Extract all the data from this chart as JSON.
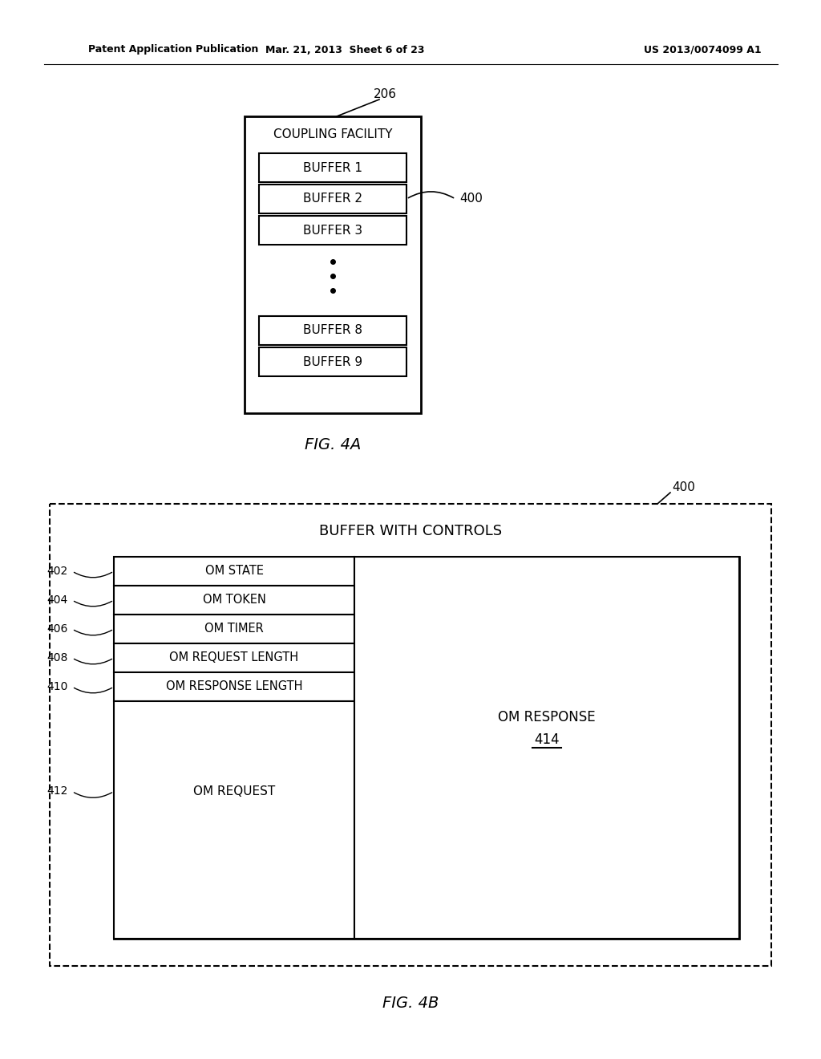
{
  "bg_color": "#ffffff",
  "header_left": "Patent Application Publication",
  "header_center": "Mar. 21, 2013  Sheet 6 of 23",
  "header_right": "US 2013/0074099 A1",
  "fig4a_label": "FIG. 4A",
  "fig4b_label": "FIG. 4B",
  "label_206": "206",
  "label_400_4a": "400",
  "label_400_4b": "400",
  "coupling_facility_text": "COUPLING FACILITY",
  "buffers_4a": [
    "BUFFER 1",
    "BUFFER 2",
    "BUFFER 3",
    "BUFFER 8",
    "BUFFER 9"
  ],
  "buffer_with_controls": "BUFFER WITH CONTROLS",
  "om_state": "OM STATE",
  "om_token": "OM TOKEN",
  "om_timer": "OM TIMER",
  "om_request_length": "OM REQUEST LENGTH",
  "om_response_length": "OM RESPONSE LENGTH",
  "om_request": "OM REQUEST",
  "om_response": "OM RESPONSE",
  "label_414": "414",
  "label_402": "402",
  "label_404": "404",
  "label_406": "406",
  "label_408": "408",
  "label_410": "410",
  "label_412": "412"
}
